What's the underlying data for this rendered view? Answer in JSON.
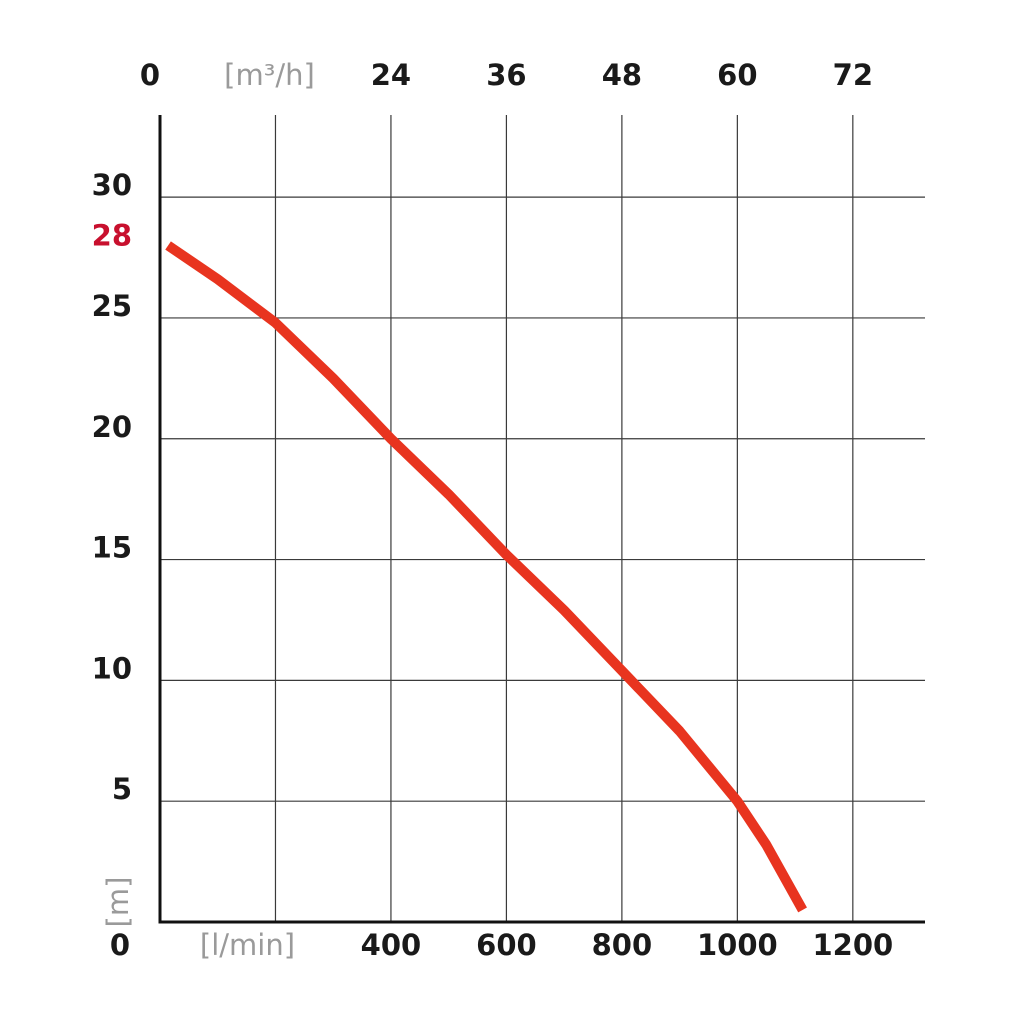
{
  "chart_data": {
    "type": "line",
    "x": [
      14,
      100,
      200,
      300,
      400,
      500,
      600,
      700,
      800,
      900,
      1000,
      1050,
      1113
    ],
    "series": [
      {
        "color": "#e8341f",
        "values": [
          28,
          26.6,
          24.8,
          22.5,
          20,
          17.7,
          15.2,
          12.9,
          10.4,
          7.9,
          5,
          3.2,
          0.5
        ]
      }
    ],
    "xlim": [
      0,
      1325
    ],
    "xticks": [
      0,
      {
        "value": 200,
        "label": "[l/min]"
      },
      400,
      600,
      800,
      1000,
      1200
    ],
    "x2lim": [
      0,
      79.5
    ],
    "x2ticks": [
      0,
      {
        "value": 12,
        "label": "[m³/h]"
      },
      24,
      36,
      48,
      60,
      72
    ],
    "ylim": [
      0,
      33.4
    ],
    "yticks": [
      5,
      10,
      15,
      20,
      25,
      30
    ],
    "y_label": "[m]",
    "max_head": 28,
    "max_head_color": "#c8102e",
    "grid": true
  }
}
